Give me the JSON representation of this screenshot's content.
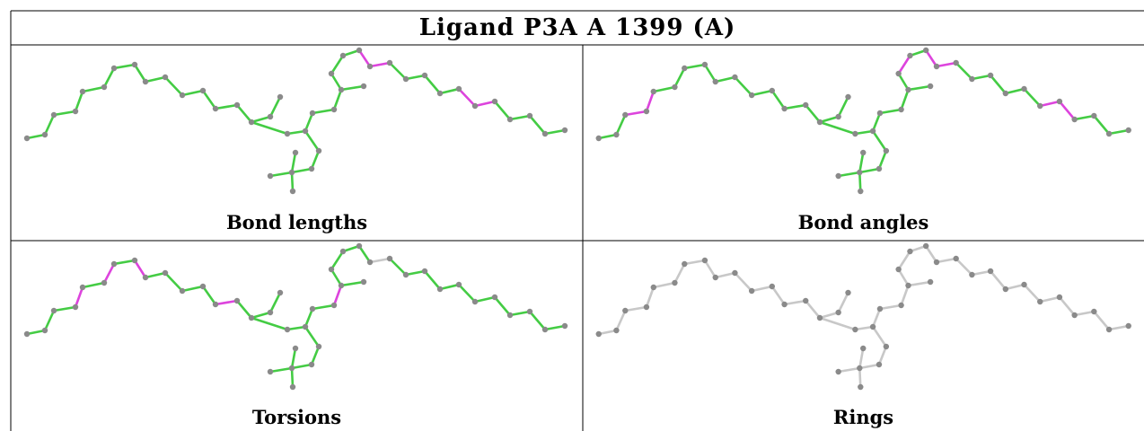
{
  "title": "Ligand P3A A 1399 (A)",
  "colors": {
    "ok_bond": "#44cc44",
    "outlier_bond": "#dd44dd",
    "neutral_bond": "#c8c8c8",
    "atom": "#8a8a8a",
    "border": "#000000"
  },
  "panels": [
    {
      "caption": "Bond lengths",
      "outlier_edges": [
        [
          24,
          25
        ],
        [
          25,
          26
        ],
        [
          30,
          31
        ],
        [
          31,
          32
        ]
      ],
      "neutral_edges": []
    },
    {
      "caption": "Bond angles",
      "outlier_edges": [
        [
          2,
          3
        ],
        [
          3,
          4
        ],
        [
          22,
          23
        ],
        [
          24,
          25
        ],
        [
          25,
          26
        ],
        [
          31,
          32
        ],
        [
          32,
          33
        ]
      ],
      "neutral_edges": []
    },
    {
      "caption": "Torsions",
      "outlier_edges": [
        [
          3,
          4
        ],
        [
          5,
          6
        ],
        [
          7,
          8
        ],
        [
          12,
          13
        ],
        [
          20,
          21
        ],
        [
          47,
          48
        ]
      ],
      "neutral_edges": [
        [
          25,
          26
        ],
        [
          52,
          53
        ],
        [
          52,
          54
        ],
        [
          52,
          55
        ],
        [
          52,
          56
        ]
      ]
    },
    {
      "caption": "Rings",
      "outlier_edges": [],
      "neutral_edges": "all"
    }
  ]
}
